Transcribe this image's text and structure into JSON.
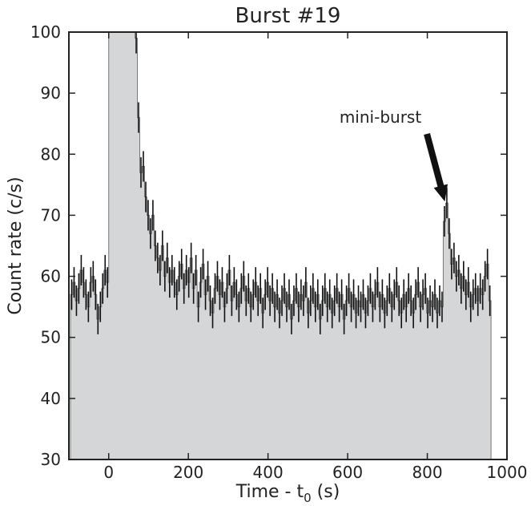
{
  "chart_data": {
    "type": "histogram",
    "title": "Burst #19",
    "xlabel_main": "Time - t",
    "xlabel_sub": "0",
    "xlabel_unit": " (s)",
    "ylabel": "Count rate (c/s)",
    "xlim": [
      -100,
      1000
    ],
    "ylim": [
      30,
      100
    ],
    "xticks": [
      0,
      200,
      400,
      600,
      800,
      1000
    ],
    "yticks": [
      30,
      40,
      50,
      60,
      70,
      80,
      90,
      100
    ],
    "bin_width": 6,
    "x_start": -96,
    "x_end": 960,
    "fill_color": "#d4d6d8",
    "annotation": {
      "text": "mini-burst",
      "x": 840,
      "y": 72
    },
    "bins": [
      [
        -96,
        57,
        2.5
      ],
      [
        -90,
        59,
        2.5
      ],
      [
        -84,
        56,
        2.5
      ],
      [
        -78,
        58,
        2.5
      ],
      [
        -72,
        61,
        2.5
      ],
      [
        -66,
        59,
        2.5
      ],
      [
        -60,
        57,
        2.5
      ],
      [
        -54,
        55,
        2.5
      ],
      [
        -48,
        59,
        2.5
      ],
      [
        -42,
        60,
        2.5
      ],
      [
        -36,
        57,
        2.5
      ],
      [
        -30,
        53,
        2.5
      ],
      [
        -24,
        55,
        2.5
      ],
      [
        -18,
        58,
        2.5
      ],
      [
        -12,
        61,
        2.5
      ],
      [
        -6,
        59,
        2.5
      ],
      [
        0,
        100,
        0
      ],
      [
        6,
        100,
        0
      ],
      [
        12,
        100,
        0
      ],
      [
        18,
        100,
        0
      ],
      [
        24,
        100,
        0
      ],
      [
        30,
        100,
        0
      ],
      [
        36,
        100,
        0
      ],
      [
        42,
        100,
        0
      ],
      [
        48,
        100,
        0
      ],
      [
        54,
        100,
        0
      ],
      [
        60,
        100,
        0
      ],
      [
        66,
        99,
        2.5
      ],
      [
        72,
        86,
        2.5
      ],
      [
        78,
        77,
        2.5
      ],
      [
        84,
        78,
        2.5
      ],
      [
        90,
        73,
        2.5
      ],
      [
        96,
        70,
        2.5
      ],
      [
        102,
        67,
        2.5
      ],
      [
        108,
        70,
        2.5
      ],
      [
        114,
        65,
        2.5
      ],
      [
        120,
        63,
        2.5
      ],
      [
        126,
        61,
        2.5
      ],
      [
        132,
        65,
        2.5
      ],
      [
        138,
        60,
        2.5
      ],
      [
        144,
        63,
        2.5
      ],
      [
        150,
        59,
        2.5
      ],
      [
        156,
        61,
        2.5
      ],
      [
        162,
        59,
        2.5
      ],
      [
        168,
        57,
        2.5
      ],
      [
        174,
        60,
        2.5
      ],
      [
        180,
        62,
        2.5
      ],
      [
        186,
        58,
        2.5
      ],
      [
        192,
        61,
        2.5
      ],
      [
        198,
        59,
        2.5
      ],
      [
        204,
        63,
        2.5
      ],
      [
        210,
        58,
        2.5
      ],
      [
        216,
        61,
        2.5
      ],
      [
        222,
        55,
        2.5
      ],
      [
        228,
        59,
        2.5
      ],
      [
        234,
        62,
        2.5
      ],
      [
        240,
        57,
        2.5
      ],
      [
        246,
        60,
        2.5
      ],
      [
        252,
        56,
        2.5
      ],
      [
        258,
        54,
        2.5
      ],
      [
        264,
        58,
        2.5
      ],
      [
        270,
        60,
        2.5
      ],
      [
        276,
        57,
        2.5
      ],
      [
        282,
        59,
        2.5
      ],
      [
        288,
        55,
        2.5
      ],
      [
        294,
        58,
        2.5
      ],
      [
        300,
        61,
        2.5
      ],
      [
        306,
        56,
        2.5
      ],
      [
        312,
        59,
        2.5
      ],
      [
        318,
        57,
        2.5
      ],
      [
        324,
        55,
        2.5
      ],
      [
        330,
        58,
        2.5
      ],
      [
        336,
        60,
        2.5
      ],
      [
        342,
        56,
        2.5
      ],
      [
        348,
        58,
        2.5
      ],
      [
        354,
        55,
        2.5
      ],
      [
        360,
        57,
        2.5
      ],
      [
        366,
        59,
        2.5
      ],
      [
        372,
        56,
        2.5
      ],
      [
        378,
        58,
        2.5
      ],
      [
        384,
        54,
        2.5
      ],
      [
        390,
        57,
        2.5
      ],
      [
        396,
        59,
        2.5
      ],
      [
        402,
        56,
        2.5
      ],
      [
        408,
        58,
        2.5
      ],
      [
        414,
        55,
        2.5
      ],
      [
        420,
        57,
        2.5
      ],
      [
        426,
        54,
        2.5
      ],
      [
        432,
        56,
        2.5
      ],
      [
        438,
        58,
        2.5
      ],
      [
        444,
        55,
        2.5
      ],
      [
        450,
        57,
        2.5
      ],
      [
        456,
        53,
        2.5
      ],
      [
        462,
        56,
        2.5
      ],
      [
        468,
        58,
        2.5
      ],
      [
        474,
        55,
        2.5
      ],
      [
        480,
        57,
        2.5
      ],
      [
        486,
        56,
        2.5
      ],
      [
        492,
        59,
        2.5
      ],
      [
        498,
        54,
        2.5
      ],
      [
        504,
        56,
        2.5
      ],
      [
        510,
        58,
        2.5
      ],
      [
        516,
        55,
        2.5
      ],
      [
        522,
        57,
        2.5
      ],
      [
        528,
        53,
        2.5
      ],
      [
        534,
        56,
        2.5
      ],
      [
        540,
        58,
        2.5
      ],
      [
        546,
        55,
        2.5
      ],
      [
        552,
        57,
        2.5
      ],
      [
        558,
        54,
        2.5
      ],
      [
        564,
        56,
        2.5
      ],
      [
        570,
        58,
        2.5
      ],
      [
        576,
        55,
        2.5
      ],
      [
        582,
        57,
        2.5
      ],
      [
        588,
        53,
        2.5
      ],
      [
        594,
        56,
        2.5
      ],
      [
        600,
        58,
        2.5
      ],
      [
        606,
        55,
        2.5
      ],
      [
        612,
        57,
        2.5
      ],
      [
        618,
        54,
        2.5
      ],
      [
        624,
        56,
        2.5
      ],
      [
        630,
        55,
        2.5
      ],
      [
        636,
        57,
        2.5
      ],
      [
        642,
        54,
        2.5
      ],
      [
        648,
        56,
        2.5
      ],
      [
        654,
        58,
        2.5
      ],
      [
        660,
        55,
        2.5
      ],
      [
        666,
        57,
        2.5
      ],
      [
        672,
        59,
        2.5
      ],
      [
        678,
        55,
        2.5
      ],
      [
        684,
        57,
        2.5
      ],
      [
        690,
        54,
        2.5
      ],
      [
        696,
        56,
        2.5
      ],
      [
        702,
        58,
        2.5
      ],
      [
        708,
        55,
        2.5
      ],
      [
        714,
        57,
        2.5
      ],
      [
        720,
        59,
        2.5
      ],
      [
        726,
        56,
        2.5
      ],
      [
        732,
        54,
        2.5
      ],
      [
        738,
        57,
        2.5
      ],
      [
        744,
        55,
        2.5
      ],
      [
        750,
        58,
        2.5
      ],
      [
        756,
        56,
        2.5
      ],
      [
        762,
        54,
        2.5
      ],
      [
        768,
        57,
        2.5
      ],
      [
        774,
        59,
        2.5
      ],
      [
        780,
        55,
        2.5
      ],
      [
        786,
        57,
        2.5
      ],
      [
        792,
        58,
        2.5
      ],
      [
        798,
        54,
        2.5
      ],
      [
        804,
        56,
        2.5
      ],
      [
        810,
        55,
        2.5
      ],
      [
        816,
        57,
        2.5
      ],
      [
        822,
        54,
        2.5
      ],
      [
        828,
        56,
        2.5
      ],
      [
        834,
        55,
        2.5
      ],
      [
        840,
        69,
        2.5
      ],
      [
        846,
        72,
        2.5
      ],
      [
        852,
        67,
        2.5
      ],
      [
        858,
        62,
        2.5
      ],
      [
        864,
        63,
        2.5
      ],
      [
        870,
        60,
        2.5
      ],
      [
        876,
        61,
        2.5
      ],
      [
        882,
        58,
        2.5
      ],
      [
        888,
        60,
        2.5
      ],
      [
        894,
        57,
        2.5
      ],
      [
        900,
        59,
        2.5
      ],
      [
        906,
        55,
        2.5
      ],
      [
        912,
        57,
        2.5
      ],
      [
        918,
        58,
        2.5
      ],
      [
        924,
        56,
        2.5
      ],
      [
        930,
        58,
        2.5
      ],
      [
        936,
        57,
        2.5
      ],
      [
        942,
        60,
        2.5
      ],
      [
        948,
        62,
        2.5
      ],
      [
        954,
        56,
        2.5
      ]
    ]
  }
}
